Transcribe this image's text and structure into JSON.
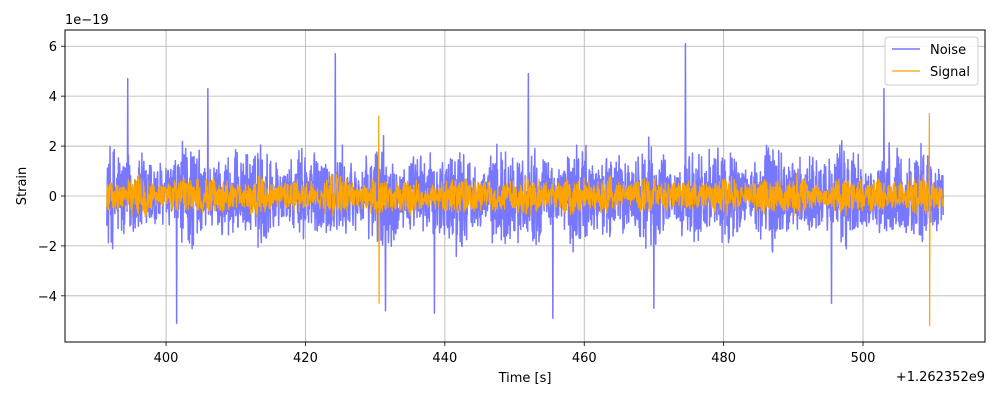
{
  "chart_data": {
    "type": "line",
    "title": "",
    "xlabel": "Time [s]",
    "ylabel": "Strain",
    "x_offset_label": "+1.262352e9",
    "y_scale_label": "1e−19",
    "xlim": [
      385.5,
      517.5
    ],
    "ylim": [
      -5.85,
      6.65
    ],
    "x_ticks": [
      400,
      420,
      440,
      460,
      480,
      500
    ],
    "x_tick_labels": [
      "400",
      "420",
      "440",
      "460",
      "480",
      "500"
    ],
    "y_ticks": [
      -4,
      -2,
      0,
      2,
      4,
      6
    ],
    "y_tick_labels": [
      "−4",
      "−2",
      "0",
      "2",
      "4",
      "6"
    ],
    "grid": true,
    "legend_position": "top-right",
    "series": [
      {
        "name": "Noise",
        "color": "#7777ff",
        "line_width": 1.5,
        "x_range": [
          391.5,
          511.5
        ],
        "envelope_amplitude": 2.6,
        "spikes": [
          {
            "x": 394.5,
            "y": 4.7
          },
          {
            "x": 406.0,
            "y": 4.3
          },
          {
            "x": 424.3,
            "y": 5.7
          },
          {
            "x": 452.0,
            "y": 4.9
          },
          {
            "x": 474.5,
            "y": 6.1
          },
          {
            "x": 503.0,
            "y": 4.3
          },
          {
            "x": 401.5,
            "y": -5.1
          },
          {
            "x": 431.5,
            "y": -4.6
          },
          {
            "x": 438.5,
            "y": -4.7
          },
          {
            "x": 455.5,
            "y": -4.9
          },
          {
            "x": 470.0,
            "y": -4.5
          },
          {
            "x": 495.5,
            "y": -4.3
          }
        ]
      },
      {
        "name": "Signal",
        "color": "#ffa500",
        "line_width": 1.2,
        "x_range": [
          391.5,
          511.5
        ],
        "envelope_amplitude": 1.0,
        "spikes": [
          {
            "x": 430.5,
            "y": 3.2
          },
          {
            "x": 430.5,
            "y": -4.3
          },
          {
            "x": 509.5,
            "y": 3.3
          },
          {
            "x": 509.5,
            "y": -5.2
          }
        ]
      }
    ]
  }
}
